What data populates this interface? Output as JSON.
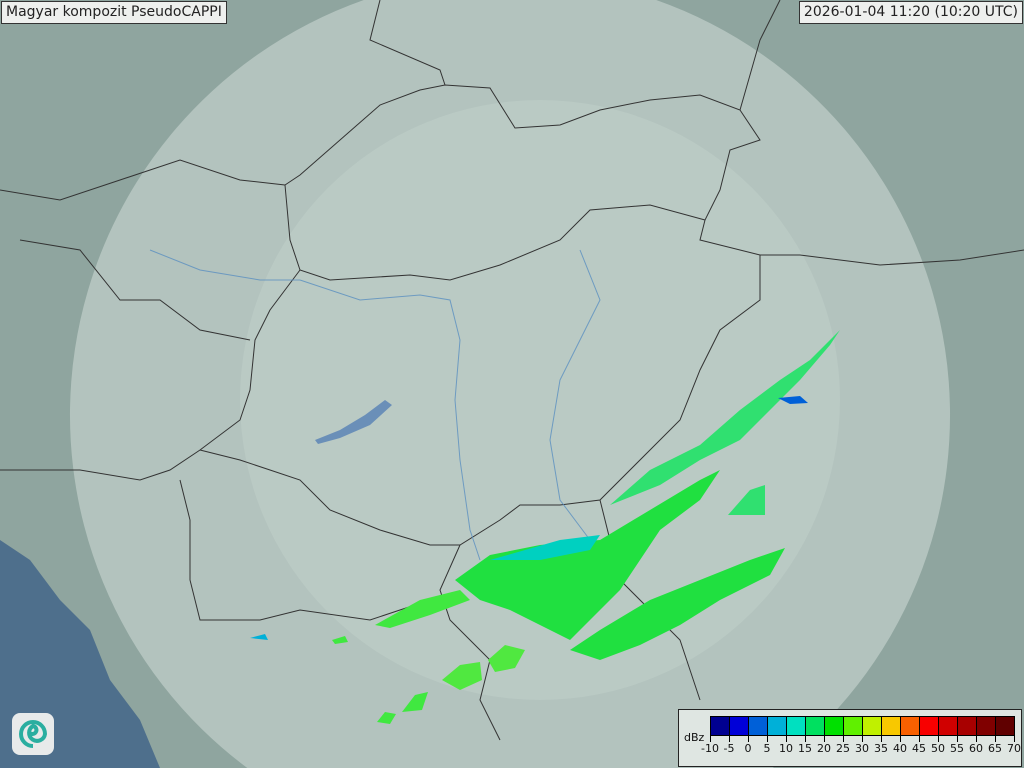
{
  "header": {
    "title": "Magyar kompozit  PseudoCAPPI",
    "timestamp": "2026-01-04 11:20 (10:20 UTC)"
  },
  "map": {
    "background_color": "#8fa59f",
    "radar_coverage_color": "#dfe8e4",
    "sea_color": "#4e6f8c",
    "border_color": "#333333",
    "river_color": "#5a8fc0"
  },
  "legend": {
    "unit": "dBz",
    "ticks": [
      "-10",
      "-5",
      "0",
      "5",
      "10",
      "15",
      "20",
      "25",
      "30",
      "35",
      "40",
      "45",
      "50",
      "55",
      "60",
      "65",
      "70"
    ],
    "colors": [
      "#000090",
      "#0000d8",
      "#0060d8",
      "#00b0d8",
      "#00e0c0",
      "#00e060",
      "#00e000",
      "#60f000",
      "#c0f000",
      "#f8c800",
      "#f86000",
      "#f80000",
      "#d00000",
      "#a80000",
      "#800000",
      "#600000"
    ]
  },
  "logo": {
    "icon": "met-service-swirl-logo"
  }
}
